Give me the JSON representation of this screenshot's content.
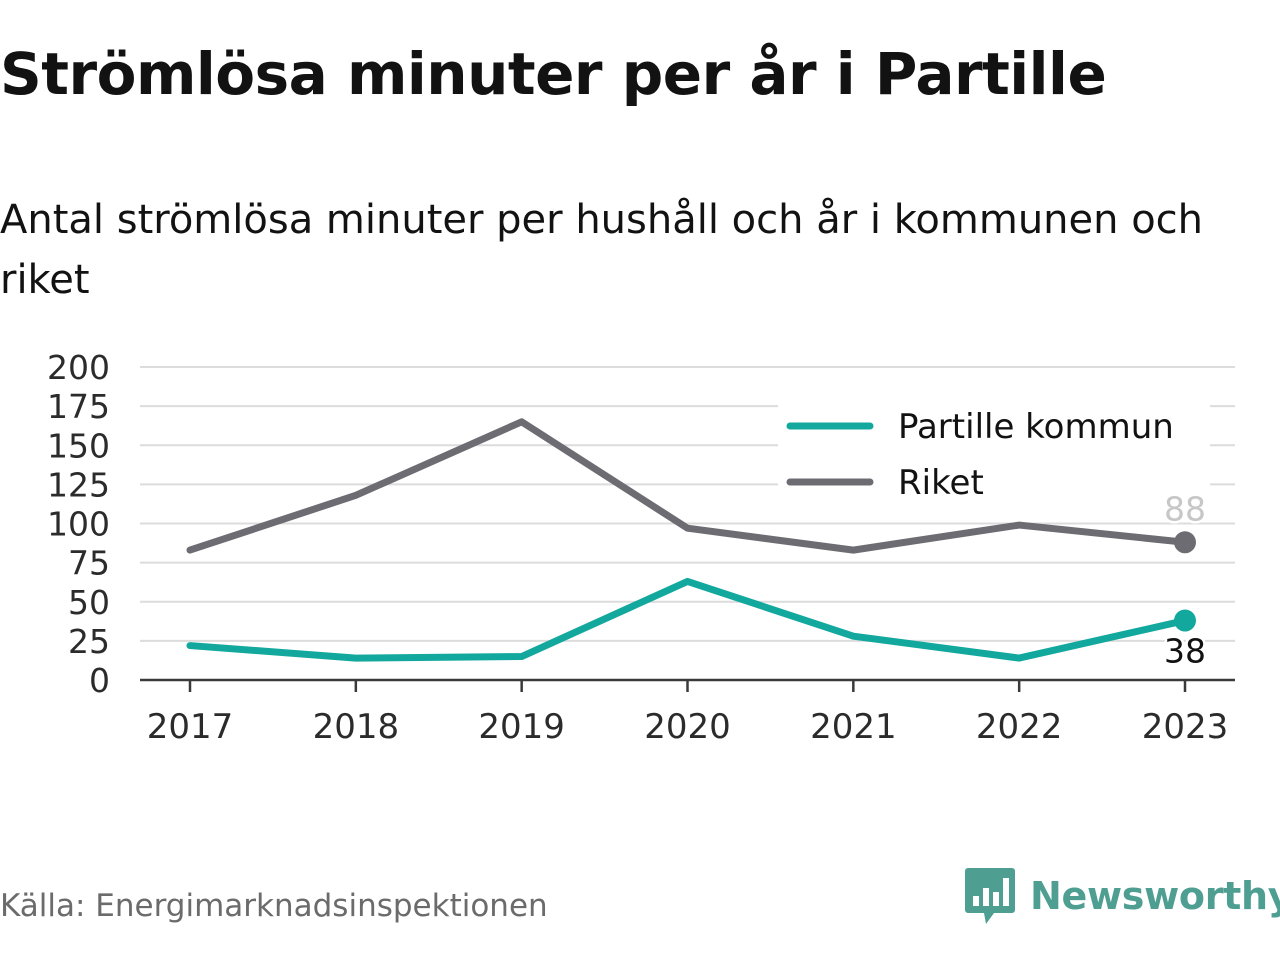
{
  "title": "Strömlösa minuter per år i Partille",
  "subtitle": "Antal strömlösa minuter per hushåll och år i kommunen och riket",
  "source": "Källa: Energimarknadsinspektionen",
  "brand": {
    "name": "Newsworthy",
    "icon": "newsworthy-logo-icon",
    "color": "#4f9e92"
  },
  "chart_data": {
    "type": "line",
    "x": [
      "2017",
      "2018",
      "2019",
      "2020",
      "2021",
      "2022",
      "2023"
    ],
    "y_ticks": [
      "0",
      "25",
      "50",
      "75",
      "100",
      "125",
      "150",
      "175",
      "200"
    ],
    "ylim": [
      0,
      200
    ],
    "grid": true,
    "legend_position": "top-right",
    "series": [
      {
        "name": "Partille kommun",
        "color": "#13a89e",
        "values": [
          22,
          14,
          15,
          63,
          28,
          14,
          38
        ],
        "end_label": "38"
      },
      {
        "name": "Riket",
        "color": "#6d6c72",
        "values": [
          83,
          118,
          165,
          97,
          83,
          99,
          88
        ],
        "end_label": "88"
      }
    ]
  }
}
